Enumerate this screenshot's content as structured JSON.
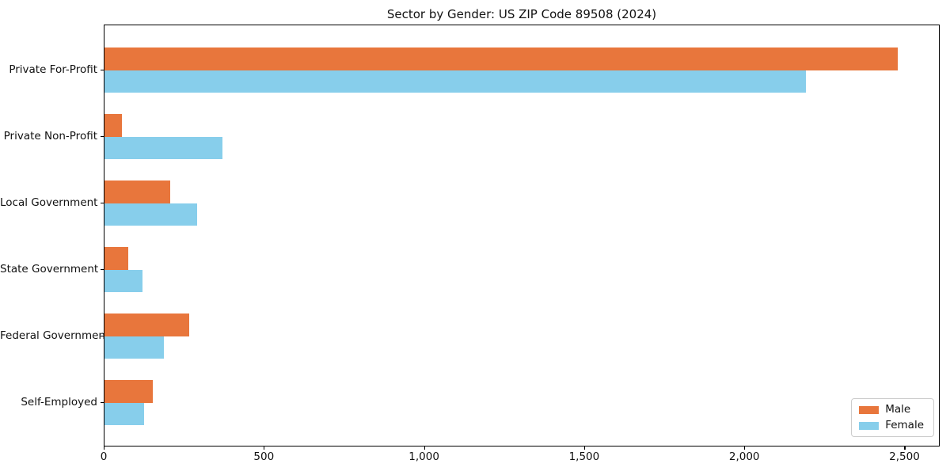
{
  "title": "Sector by Gender: US ZIP Code 89508 (2024)",
  "colors": {
    "male": "#E8763C",
    "female": "#87CEEB",
    "spine": "#000000",
    "legend_border": "#cccccc",
    "background": "#ffffff"
  },
  "legend": {
    "items": [
      {
        "label": "Male",
        "color": "#E8763C"
      },
      {
        "label": "Female",
        "color": "#87CEEB"
      }
    ],
    "position": "lower right"
  },
  "chart_data": {
    "type": "bar",
    "orientation": "horizontal",
    "title": "Sector by Gender: US ZIP Code 89508 (2024)",
    "categories": [
      "Private For-Profit",
      "Private Non-Profit",
      "Local Government",
      "State Government",
      "Federal Government",
      "Self-Employed"
    ],
    "series": [
      {
        "name": "Male",
        "color": "#E8763C",
        "values": [
          2480,
          55,
          205,
          75,
          265,
          150
        ]
      },
      {
        "name": "Female",
        "color": "#87CEEB",
        "values": [
          2195,
          370,
          290,
          120,
          185,
          125
        ]
      }
    ],
    "xlabel": "",
    "ylabel": "",
    "xlim": [
      0,
      2610
    ],
    "xticks": [
      0,
      500,
      1000,
      1500,
      2000,
      2500
    ],
    "xtick_labels": [
      "0",
      "500",
      "1,000",
      "1,500",
      "2,000",
      "2,500"
    ],
    "grid": false,
    "legend_position": "lower right"
  }
}
